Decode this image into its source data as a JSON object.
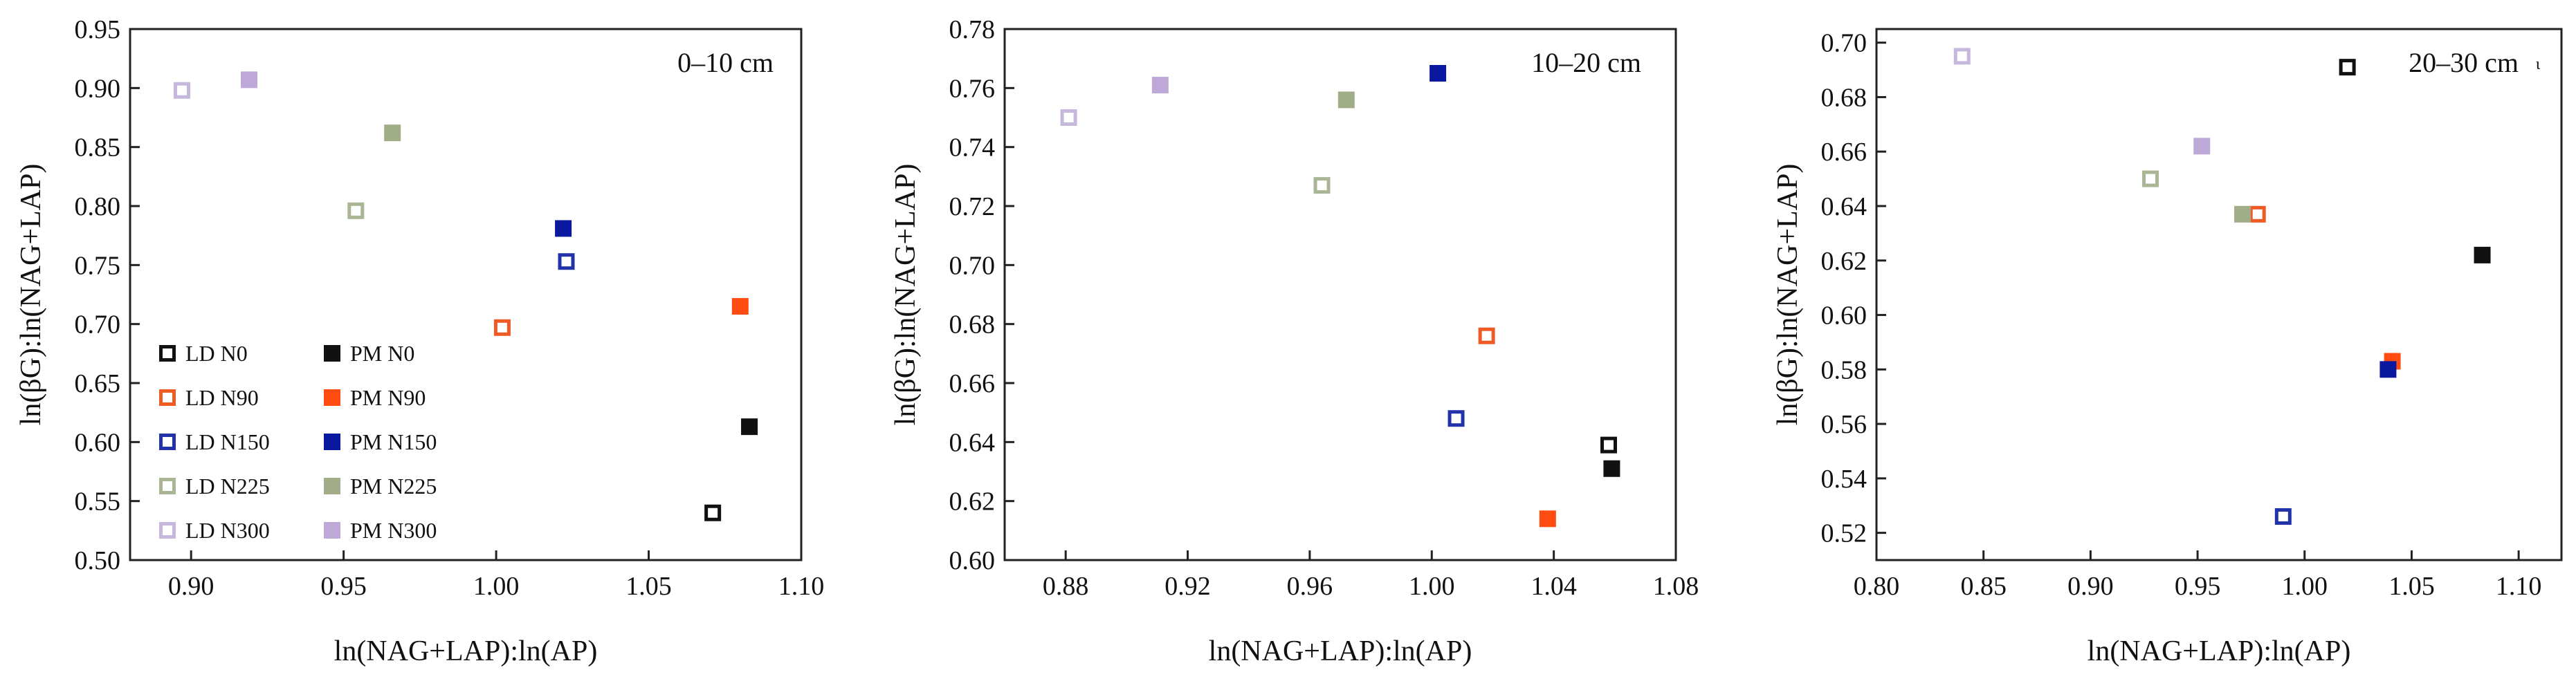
{
  "colors": {
    "LD N0": "#111111",
    "PM N0": "#111111",
    "LD N90": "#f05a24",
    "PM N90": "#ff4d12",
    "LD N150": "#2233aa",
    "PM N150": "#0a18a0",
    "LD N225": "#a9b595",
    "PM N225": "#a1ad89",
    "LD N300": "#c6b7dc",
    "PM N300": "#bda8d8"
  },
  "chart_data": [
    {
      "type": "scatter",
      "title": "0–10 cm",
      "xlabel": "ln(NAG+LAP):ln(AP)",
      "ylabel": "ln(βG):ln(NAG+LAP)",
      "xlim": [
        0.88,
        1.1
      ],
      "ylim": [
        0.5,
        0.95
      ],
      "xticks": [
        "0.90",
        "0.95",
        "1.00",
        "1.05",
        "1.10"
      ],
      "yticks": [
        "0.50",
        "0.55",
        "0.60",
        "0.65",
        "0.70",
        "0.75",
        "0.80",
        "0.85",
        "0.90",
        "0.95"
      ],
      "legend": {
        "placement": "lower-left",
        "entries": [
          {
            "name": "LD  N0",
            "series": "LD N0",
            "style": "open"
          },
          {
            "name": "PM  N0",
            "series": "PM N0",
            "style": "filled"
          },
          {
            "name": "LD  N90",
            "series": "LD N90",
            "style": "open"
          },
          {
            "name": "PM  N90",
            "series": "PM N90",
            "style": "filled"
          },
          {
            "name": "LD  N150",
            "series": "LD N150",
            "style": "open"
          },
          {
            "name": "PM  N150",
            "series": "PM N150",
            "style": "filled"
          },
          {
            "name": "LD  N225",
            "series": "LD N225",
            "style": "open"
          },
          {
            "name": "PM  N225",
            "series": "PM N225",
            "style": "filled"
          },
          {
            "name": "LD  N300",
            "series": "LD N300",
            "style": "open"
          },
          {
            "name": "PM  N300",
            "series": "PM N300",
            "style": "filled"
          }
        ]
      },
      "series": [
        {
          "name": "LD N0",
          "style": "open",
          "x": 1.071,
          "y": 0.54
        },
        {
          "name": "PM N0",
          "style": "filled",
          "x": 1.083,
          "y": 0.613
        },
        {
          "name": "LD N90",
          "style": "open",
          "x": 1.002,
          "y": 0.697
        },
        {
          "name": "PM N90",
          "style": "filled",
          "x": 1.08,
          "y": 0.715
        },
        {
          "name": "LD N150",
          "style": "open",
          "x": 1.023,
          "y": 0.753
        },
        {
          "name": "PM N150",
          "style": "filled",
          "x": 1.022,
          "y": 0.781
        },
        {
          "name": "LD N225",
          "style": "open",
          "x": 0.954,
          "y": 0.796
        },
        {
          "name": "PM N225",
          "style": "filled",
          "x": 0.966,
          "y": 0.862
        },
        {
          "name": "LD N300",
          "style": "open",
          "x": 0.897,
          "y": 0.898
        },
        {
          "name": "PM N300",
          "style": "filled",
          "x": 0.919,
          "y": 0.907
        }
      ]
    },
    {
      "type": "scatter",
      "title": "10–20 cm",
      "xlabel": "ln(NAG+LAP):ln(AP)",
      "ylabel": "ln(βG):ln(NAG+LAP)",
      "xlim": [
        0.86,
        1.08
      ],
      "ylim": [
        0.6,
        0.78
      ],
      "xticks": [
        "0.88",
        "0.92",
        "0.96",
        "1.00",
        "1.04",
        "1.08"
      ],
      "yticks": [
        "0.60",
        "0.62",
        "0.64",
        "0.66",
        "0.68",
        "0.70",
        "0.72",
        "0.74",
        "0.76",
        "0.78"
      ],
      "series": [
        {
          "name": "LD N0",
          "style": "open",
          "x": 1.058,
          "y": 0.639
        },
        {
          "name": "PM N0",
          "style": "filled",
          "x": 1.059,
          "y": 0.631
        },
        {
          "name": "LD N90",
          "style": "open",
          "x": 1.018,
          "y": 0.676
        },
        {
          "name": "PM N90",
          "style": "filled",
          "x": 1.038,
          "y": 0.614
        },
        {
          "name": "LD N150",
          "style": "open",
          "x": 1.008,
          "y": 0.648
        },
        {
          "name": "PM N150",
          "style": "filled",
          "x": 1.002,
          "y": 0.765
        },
        {
          "name": "LD N225",
          "style": "open",
          "x": 0.964,
          "y": 0.727
        },
        {
          "name": "PM N225",
          "style": "filled",
          "x": 0.972,
          "y": 0.756
        },
        {
          "name": "LD N300",
          "style": "open",
          "x": 0.881,
          "y": 0.75
        },
        {
          "name": "PM N300",
          "style": "filled",
          "x": 0.911,
          "y": 0.761
        }
      ]
    },
    {
      "type": "scatter",
      "title": "20–30 cm",
      "title_mark": "ι",
      "xlabel": "ln(NAG+LAP):ln(AP)",
      "ylabel": "ln(βG):ln(NAG+LAP)",
      "xlim": [
        0.8,
        1.12
      ],
      "ylim": [
        0.51,
        0.705
      ],
      "xticks": [
        "0.80",
        "0.85",
        "0.90",
        "0.95",
        "1.00",
        "1.05",
        "1.10"
      ],
      "yticks": [
        "0.52",
        "0.54",
        "0.56",
        "0.58",
        "0.60",
        "0.62",
        "0.64",
        "0.66",
        "0.68",
        "0.70"
      ],
      "series": [
        {
          "name": "LD N0",
          "style": "open",
          "x": 1.02,
          "y": 0.691
        },
        {
          "name": "PM N0",
          "style": "filled",
          "x": 1.083,
          "y": 0.622
        },
        {
          "name": "LD N90",
          "style": "open",
          "x": 0.978,
          "y": 0.637
        },
        {
          "name": "PM N90",
          "style": "filled",
          "x": 1.041,
          "y": 0.583
        },
        {
          "name": "LD N150",
          "style": "open",
          "x": 0.99,
          "y": 0.526
        },
        {
          "name": "PM N150",
          "style": "filled",
          "x": 1.039,
          "y": 0.58
        },
        {
          "name": "LD N225",
          "style": "open",
          "x": 0.928,
          "y": 0.65
        },
        {
          "name": "PM N225",
          "style": "filled",
          "x": 0.971,
          "y": 0.637
        },
        {
          "name": "LD N300",
          "style": "open",
          "x": 0.84,
          "y": 0.695
        },
        {
          "name": "PM N300",
          "style": "filled",
          "x": 0.952,
          "y": 0.662
        }
      ]
    }
  ]
}
